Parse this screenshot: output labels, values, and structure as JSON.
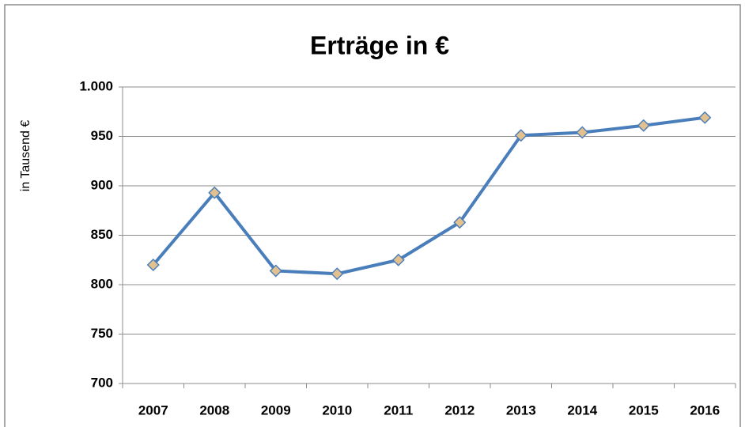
{
  "chart_data": {
    "type": "line",
    "title": "Erträge in €",
    "y_label": "in Tausend €",
    "categories": [
      "2007",
      "2008",
      "2009",
      "2010",
      "2011",
      "2012",
      "2013",
      "2014",
      "2015",
      "2016"
    ],
    "values": [
      820,
      893,
      814,
      811,
      825,
      863,
      951,
      954,
      961,
      969
    ],
    "color": "#4a7ebb",
    "marker_color": "#e3c18f",
    "ylim": [
      700,
      1000
    ],
    "yticks": [
      700,
      750,
      800,
      850,
      900,
      950,
      {
        "value": 1000,
        "label": "1.000"
      }
    ],
    "grid": true
  }
}
